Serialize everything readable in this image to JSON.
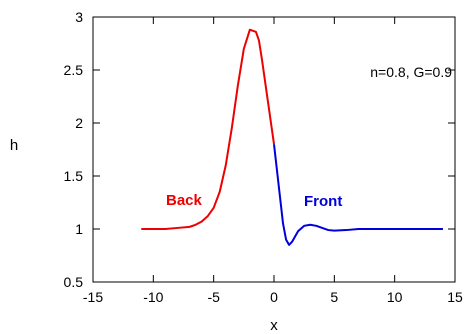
{
  "chart_data": {
    "type": "line",
    "xlabel": "x",
    "ylabel": "h",
    "xlim": [
      -15,
      15
    ],
    "ylim": [
      0.5,
      3
    ],
    "xticks": [
      -15,
      -10,
      -5,
      0,
      5,
      10,
      15
    ],
    "yticks": [
      0.5,
      1,
      1.5,
      2,
      2.5,
      3
    ],
    "ytick_labels": [
      "0.5",
      "1",
      "1.5",
      "2",
      "2.5",
      "3"
    ],
    "grid": false,
    "annotation": "n=0.8, G=0.9",
    "series": [
      {
        "name": "Back",
        "color": "#ee0000",
        "x": [
          -11,
          -10,
          -9,
          -8,
          -7,
          -6.5,
          -6,
          -5.5,
          -5,
          -4.5,
          -4,
          -3.5,
          -3,
          -2.5,
          -2,
          -1.5,
          -1.25,
          -1,
          -0.75,
          -0.5,
          -0.25,
          0
        ],
        "y": [
          1.0,
          1.0,
          1.0,
          1.01,
          1.02,
          1.04,
          1.07,
          1.12,
          1.2,
          1.35,
          1.6,
          1.95,
          2.35,
          2.7,
          2.88,
          2.86,
          2.78,
          2.6,
          2.4,
          2.2,
          2.0,
          1.8
        ]
      },
      {
        "name": "Front",
        "color": "#0000dd",
        "x": [
          0,
          0.25,
          0.5,
          0.75,
          1,
          1.25,
          1.5,
          2,
          2.5,
          3,
          3.5,
          4,
          4.5,
          5,
          6,
          7,
          8,
          10,
          12,
          14
        ],
        "y": [
          1.8,
          1.55,
          1.3,
          1.05,
          0.9,
          0.85,
          0.88,
          0.98,
          1.03,
          1.04,
          1.03,
          1.01,
          0.99,
          0.985,
          0.99,
          1.0,
          1.0,
          1.0,
          1.0,
          1.0
        ]
      }
    ],
    "labels": {
      "back": "Back",
      "front": "Front"
    }
  }
}
